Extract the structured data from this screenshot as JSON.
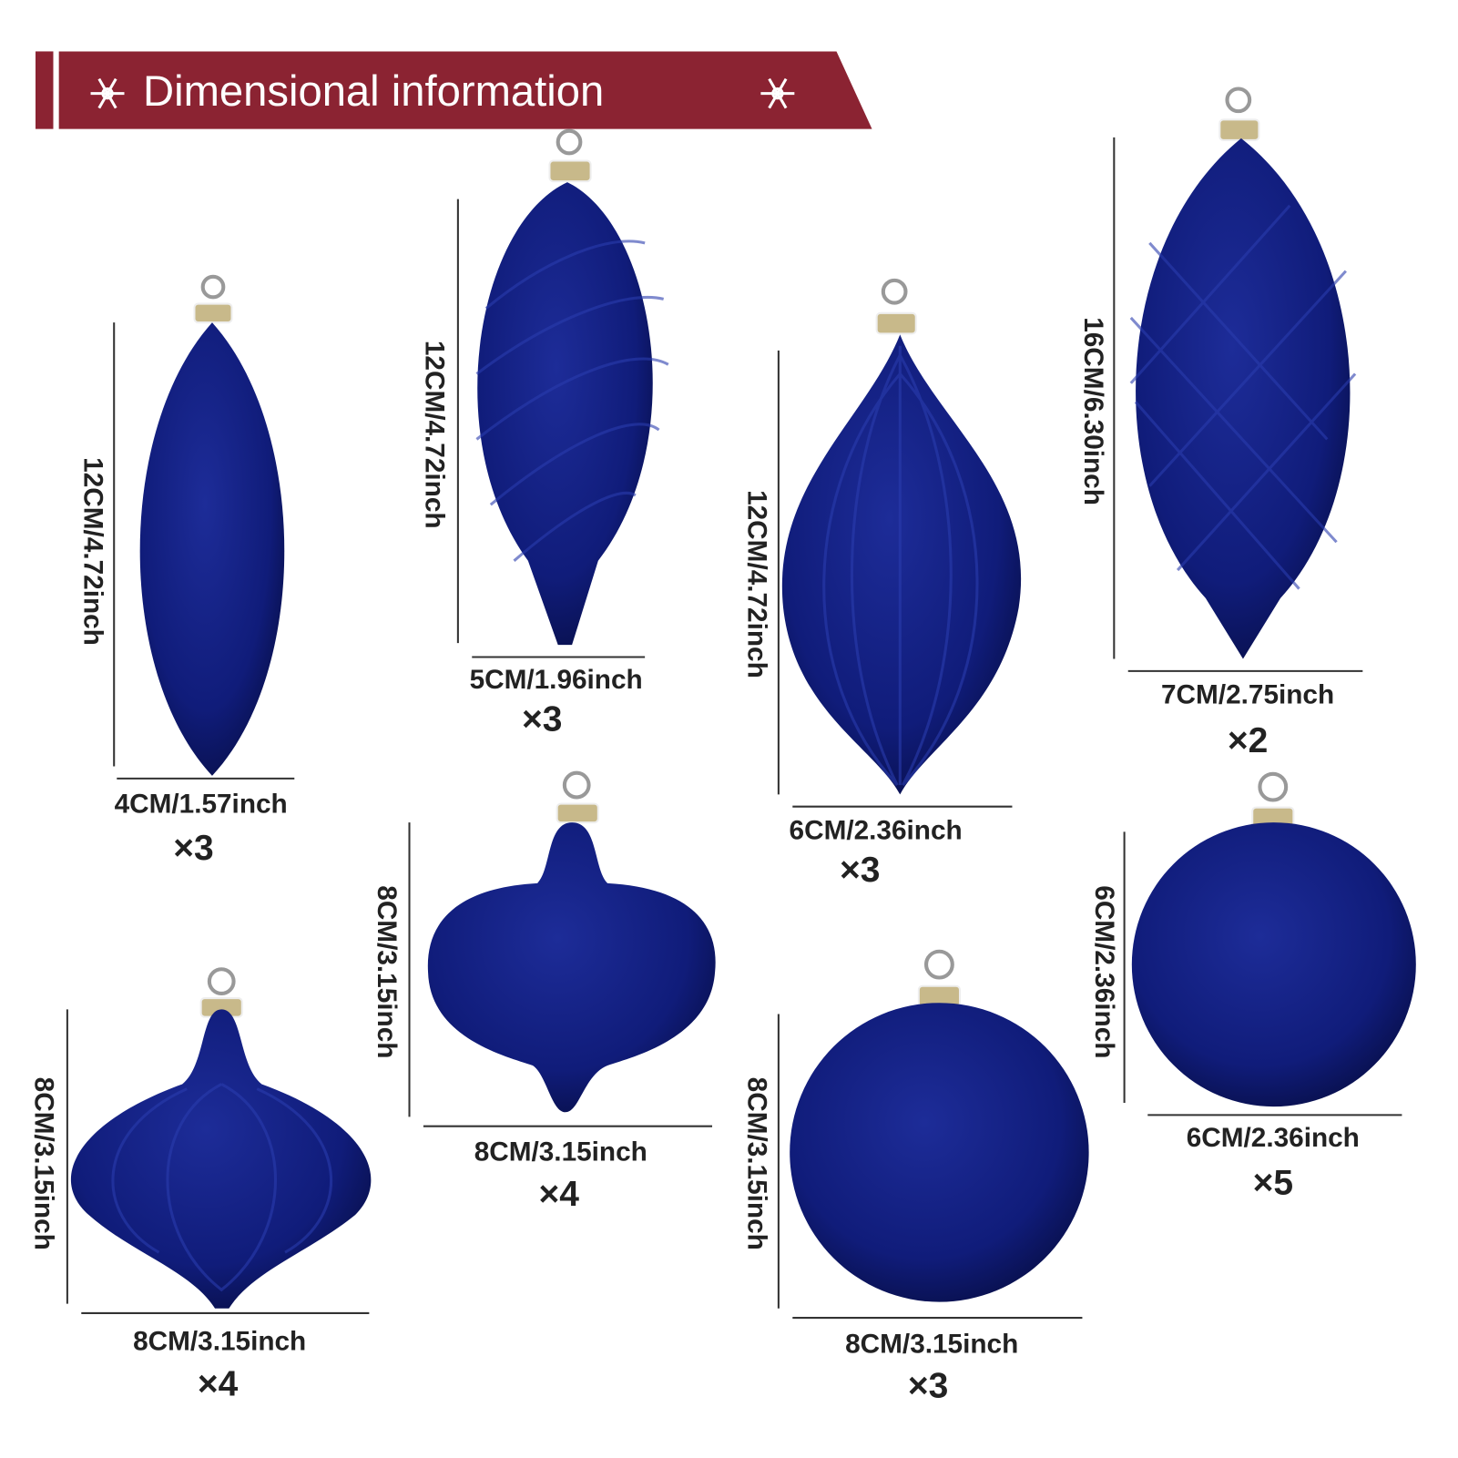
{
  "header": {
    "title": "Dimensional information"
  },
  "ornaments": [
    {
      "height": "12CM/4.72inch",
      "width": "4CM/1.57inch",
      "quantity": "×3"
    },
    {
      "height": "12CM/4.72inch",
      "width": "5CM/1.96inch",
      "quantity": "×3"
    },
    {
      "height": "12CM/4.72inch",
      "width": "6CM/2.36inch",
      "quantity": "×3"
    },
    {
      "height": "16CM/6.30inch",
      "width": "7CM/2.75inch",
      "quantity": "×2"
    },
    {
      "height": "8CM/3.15inch",
      "width": "8CM/3.15inch",
      "quantity": "×4"
    },
    {
      "height": "8CM/3.15inch",
      "width": "8CM/3.15inch",
      "quantity": "×4"
    },
    {
      "height": "8CM/3.15inch",
      "width": "8CM/3.15inch",
      "quantity": "×3"
    },
    {
      "height": "6CM/2.36inch",
      "width": "6CM/2.36inch",
      "quantity": "×5"
    }
  ]
}
